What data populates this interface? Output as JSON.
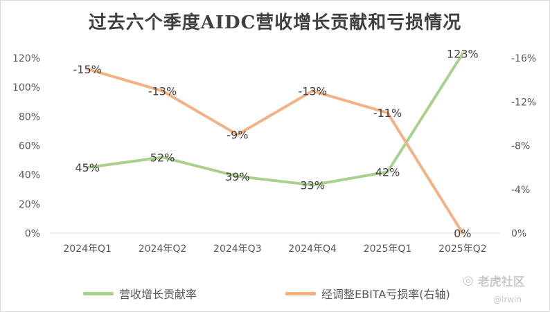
{
  "chart_data": {
    "type": "line",
    "title": "过去六个季度AIDC营收增长贡献和亏损情况",
    "categories": [
      "2024年Q1",
      "2024年Q2",
      "2024年Q3",
      "2024年Q4",
      "2025年Q1",
      "2025年Q2"
    ],
    "series": [
      {
        "name": "营收增长贡献率",
        "axis": "left",
        "color": "#a9d18e",
        "values": [
          45,
          52,
          39,
          33,
          42,
          123
        ],
        "labels": [
          "45%",
          "52%",
          "39%",
          "33%",
          "42%",
          "123%"
        ]
      },
      {
        "name": "经调整EBITA亏损率(右轴)",
        "axis": "right",
        "color": "#f4b183",
        "values": [
          -15,
          -13,
          -9,
          -13,
          -11,
          0
        ],
        "labels": [
          "-15%",
          "-13%",
          "-9%",
          "-13%",
          "-11%",
          "0%"
        ]
      }
    ],
    "y_left": {
      "min": 0,
      "max": 120,
      "ticks": [
        0,
        20,
        40,
        60,
        80,
        100,
        120
      ],
      "tick_labels": [
        "0%",
        "20%",
        "40%",
        "60%",
        "80%",
        "100%",
        "120%"
      ]
    },
    "y_right": {
      "min": 0,
      "max": -16,
      "reversed": true,
      "ticks": [
        0,
        -4,
        -8,
        -12,
        -16
      ],
      "tick_labels": [
        "0%",
        "-4%",
        "-8%",
        "-12%",
        "-16%"
      ]
    },
    "grid": false,
    "legend_position": "bottom"
  },
  "watermark": {
    "brand": "老虎社区",
    "icon": "tiger-logo-icon",
    "user": "@lrwin"
  }
}
